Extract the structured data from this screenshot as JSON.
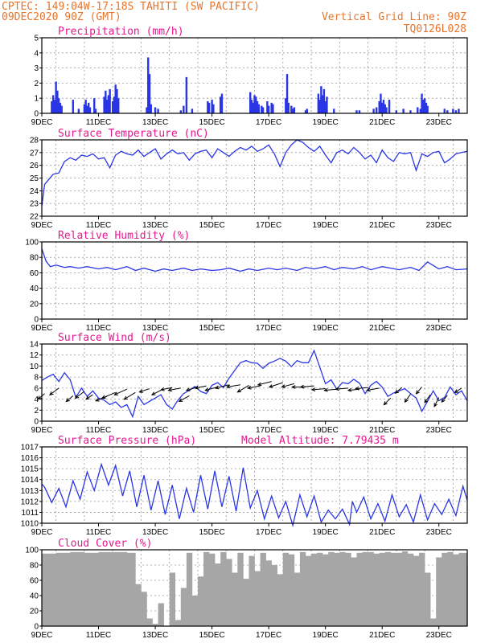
{
  "header": {
    "line1": "CPTEC:   149:04W-17:18S  TAHITI (SW PACIFIC)",
    "line2": "09DEC2020 90Z (GMT)",
    "grid_note": "Vertical Grid Line: 90Z",
    "code": "TQ0126L028"
  },
  "colors": {
    "header": "#e8742a",
    "title": "#e6188f",
    "series": "#2a36e6",
    "cloud": "#a6a6a6",
    "arrow": "#000000"
  },
  "x_axis": {
    "days_start": 0,
    "days_end": 15,
    "tick_labels": [
      "9DEC",
      "11DEC",
      "13DEC",
      "15DEC",
      "17DEC",
      "19DEC",
      "21DEC",
      "23DEC"
    ],
    "tick_days": [
      0,
      2,
      4,
      6,
      8,
      10,
      12,
      14
    ]
  },
  "chart_data": [
    {
      "id": "precip",
      "type": "bar",
      "title": "Precipitation (mm/h)",
      "ylim": [
        0,
        5
      ],
      "yticks": [
        0,
        1,
        2,
        3,
        4,
        5
      ],
      "x": [
        0.35,
        0.4,
        0.45,
        0.5,
        0.55,
        0.6,
        0.65,
        0.7,
        1.1,
        1.3,
        1.5,
        1.55,
        1.6,
        1.65,
        1.7,
        1.85,
        1.9,
        2.2,
        2.25,
        2.3,
        2.35,
        2.4,
        2.5,
        2.55,
        2.6,
        2.65,
        2.7,
        3.7,
        3.75,
        3.8,
        3.85,
        4.0,
        4.1,
        4.9,
        5.0,
        5.1,
        5.3,
        5.85,
        5.9,
        6.0,
        6.05,
        6.3,
        6.35,
        7.35,
        7.4,
        7.45,
        7.5,
        7.55,
        7.6,
        7.65,
        7.75,
        7.8,
        7.95,
        8.0,
        8.1,
        8.15,
        8.6,
        8.65,
        8.7,
        8.8,
        8.85,
        8.9,
        9.3,
        9.35,
        9.75,
        9.8,
        9.85,
        9.9,
        9.95,
        10.0,
        10.05,
        10.3,
        11.1,
        11.2,
        11.7,
        11.8,
        11.9,
        11.95,
        12.0,
        12.05,
        12.1,
        12.15,
        12.25,
        12.5,
        12.75,
        13.0,
        13.25,
        13.35,
        13.4,
        13.45,
        13.5,
        13.55,
        13.6,
        14.2,
        14.3,
        14.5,
        14.6,
        14.7
      ],
      "values": [
        0.8,
        1.2,
        0.9,
        2.1,
        1.5,
        1.0,
        0.7,
        0.5,
        0.9,
        0.3,
        0.6,
        0.9,
        0.5,
        0.7,
        0.4,
        1.0,
        0.3,
        1.1,
        1.5,
        0.9,
        1.2,
        1.6,
        0.8,
        1.1,
        1.9,
        1.6,
        1.0,
        0.4,
        3.7,
        2.6,
        0.6,
        0.4,
        0.3,
        0.2,
        0.5,
        2.4,
        0.3,
        0.8,
        0.7,
        0.9,
        0.6,
        1.1,
        1.3,
        1.4,
        0.9,
        0.7,
        1.2,
        1.1,
        0.8,
        0.6,
        0.5,
        0.4,
        0.8,
        0.5,
        0.7,
        0.6,
        1.0,
        2.6,
        0.7,
        0.5,
        0.3,
        0.4,
        0.2,
        0.3,
        1.3,
        0.9,
        1.8,
        1.2,
        1.6,
        0.8,
        1.1,
        0.3,
        0.2,
        0.2,
        0.3,
        0.4,
        0.8,
        1.3,
        0.7,
        0.9,
        0.6,
        0.4,
        0.9,
        0.2,
        0.3,
        0.2,
        0.4,
        0.3,
        1.3,
        0.9,
        1.0,
        0.7,
        0.5,
        0.3,
        0.2,
        0.3,
        0.2,
        0.3
      ]
    },
    {
      "id": "temp",
      "type": "line",
      "title": "Surface Temperature (nC)",
      "ylim": [
        22,
        28
      ],
      "yticks": [
        22,
        23,
        24,
        25,
        26,
        27,
        28
      ],
      "x": [
        0,
        0.1,
        0.25,
        0.4,
        0.6,
        0.8,
        1.0,
        1.2,
        1.4,
        1.6,
        1.8,
        2.0,
        2.2,
        2.4,
        2.6,
        2.8,
        3.0,
        3.2,
        3.4,
        3.6,
        3.8,
        4.0,
        4.2,
        4.4,
        4.6,
        4.8,
        5.0,
        5.2,
        5.4,
        5.6,
        5.8,
        6.0,
        6.2,
        6.4,
        6.6,
        6.8,
        7.0,
        7.2,
        7.4,
        7.6,
        7.8,
        8.0,
        8.2,
        8.4,
        8.6,
        8.8,
        9.0,
        9.2,
        9.4,
        9.6,
        9.8,
        10.0,
        10.2,
        10.4,
        10.6,
        10.8,
        11.0,
        11.2,
        11.4,
        11.6,
        11.8,
        12.0,
        12.2,
        12.4,
        12.6,
        12.8,
        13.0,
        13.2,
        13.4,
        13.6,
        13.8,
        14.0,
        14.2,
        14.4,
        14.6,
        14.8,
        15.0
      ],
      "values": [
        22.8,
        24.5,
        24.9,
        25.3,
        25.4,
        26.3,
        26.6,
        26.4,
        26.8,
        26.7,
        26.9,
        26.5,
        26.6,
        25.8,
        26.8,
        27.1,
        26.9,
        26.8,
        27.2,
        26.7,
        27.0,
        27.3,
        26.5,
        26.9,
        27.2,
        26.9,
        27.0,
        26.4,
        26.9,
        27.1,
        27.2,
        26.6,
        27.3,
        27.0,
        26.7,
        27.1,
        27.4,
        27.2,
        27.5,
        27.1,
        27.3,
        27.6,
        26.9,
        25.9,
        27.0,
        27.6,
        28.0,
        27.8,
        27.4,
        27.1,
        27.5,
        26.8,
        26.2,
        27.0,
        27.2,
        26.9,
        27.4,
        27.0,
        26.5,
        26.8,
        26.2,
        27.2,
        26.6,
        26.3,
        27.0,
        26.9,
        27.0,
        25.6,
        26.9,
        26.7,
        27.0,
        27.1,
        26.2,
        26.5,
        26.9,
        27.0,
        27.1
      ]
    },
    {
      "id": "rh",
      "type": "line",
      "title": "Relative Humidity (%)",
      "ylim": [
        0,
        100
      ],
      "yticks": [
        0,
        20,
        40,
        60,
        80,
        100
      ],
      "x": [
        0,
        0.15,
        0.3,
        0.5,
        0.8,
        1.0,
        1.3,
        1.6,
        2.0,
        2.3,
        2.6,
        3.0,
        3.3,
        3.6,
        4.0,
        4.3,
        4.6,
        5.0,
        5.3,
        5.6,
        6.0,
        6.3,
        6.6,
        7.0,
        7.3,
        7.6,
        8.0,
        8.3,
        8.6,
        9.0,
        9.3,
        9.6,
        10.0,
        10.3,
        10.6,
        11.0,
        11.3,
        11.6,
        12.0,
        12.3,
        12.6,
        13.0,
        13.3,
        13.6,
        14.0,
        14.3,
        14.6,
        15.0
      ],
      "values": [
        91,
        75,
        68,
        70,
        67,
        68,
        66,
        68,
        65,
        67,
        64,
        68,
        63,
        66,
        62,
        65,
        63,
        66,
        63,
        65,
        63,
        64,
        66,
        62,
        65,
        63,
        66,
        64,
        66,
        63,
        67,
        65,
        68,
        64,
        67,
        65,
        68,
        64,
        68,
        66,
        64,
        67,
        63,
        74,
        65,
        68,
        64,
        65
      ]
    },
    {
      "id": "wind",
      "type": "line",
      "title": "Surface Wind (m/s)",
      "ylim": [
        0,
        14
      ],
      "yticks": [
        0,
        2,
        4,
        6,
        8,
        10,
        12,
        14
      ],
      "x": [
        0,
        0.2,
        0.4,
        0.6,
        0.8,
        1.0,
        1.2,
        1.4,
        1.6,
        1.8,
        2.0,
        2.2,
        2.4,
        2.6,
        2.8,
        3.0,
        3.2,
        3.4,
        3.6,
        3.8,
        4.0,
        4.2,
        4.4,
        4.6,
        4.8,
        5.0,
        5.2,
        5.4,
        5.6,
        5.8,
        6.0,
        6.2,
        6.4,
        6.6,
        6.8,
        7.0,
        7.2,
        7.4,
        7.6,
        7.8,
        8.0,
        8.2,
        8.4,
        8.6,
        8.8,
        9.0,
        9.2,
        9.4,
        9.6,
        9.8,
        10.0,
        10.2,
        10.4,
        10.6,
        10.8,
        11.0,
        11.2,
        11.4,
        11.6,
        11.8,
        12.0,
        12.2,
        12.4,
        12.6,
        12.8,
        13.0,
        13.2,
        13.4,
        13.6,
        13.8,
        14.0,
        14.2,
        14.4,
        14.6,
        14.8,
        15.0
      ],
      "values": [
        7.4,
        8.0,
        8.5,
        7.2,
        8.8,
        7.5,
        4.3,
        6.0,
        4.5,
        5.5,
        4.2,
        3.8,
        3.0,
        3.5,
        2.5,
        3.0,
        0.8,
        4.5,
        3.0,
        3.6,
        4.2,
        4.8,
        3.0,
        2.2,
        3.8,
        5.0,
        5.6,
        6.3,
        5.4,
        5.0,
        6.5,
        7.0,
        6.1,
        7.8,
        9.2,
        10.6,
        11.0,
        10.6,
        10.5,
        9.6,
        10.5,
        10.9,
        11.4,
        10.9,
        9.9,
        11.0,
        10.6,
        10.6,
        12.8,
        9.8,
        6.8,
        7.5,
        5.8,
        7.0,
        6.8,
        7.6,
        6.9,
        5.0,
        6.5,
        7.2,
        6.2,
        4.5,
        5.1,
        5.5,
        5.9,
        5.0,
        4.2,
        1.8,
        3.6,
        5.5,
        3.7,
        4.3,
        6.2,
        4.8,
        5.5,
        3.7
      ]
    },
    {
      "id": "pres",
      "type": "line",
      "title": "Surface Pressure (hPa)",
      "extra_label": "Model Altitude: 7.79435 m",
      "ylim": [
        1010,
        1017
      ],
      "yticks": [
        1010,
        1011,
        1012,
        1013,
        1014,
        1015,
        1016,
        1017
      ],
      "x": [
        0,
        0.1,
        0.35,
        0.6,
        0.85,
        1.1,
        1.35,
        1.6,
        1.85,
        2.1,
        2.35,
        2.6,
        2.85,
        3.1,
        3.35,
        3.6,
        3.85,
        4.1,
        4.35,
        4.6,
        4.85,
        5.1,
        5.35,
        5.6,
        5.85,
        6.1,
        6.35,
        6.6,
        6.85,
        7.1,
        7.35,
        7.6,
        7.85,
        8.1,
        8.35,
        8.6,
        8.85,
        9.1,
        9.35,
        9.6,
        9.85,
        10.1,
        10.35,
        10.6,
        10.85,
        10.95,
        11.1,
        11.35,
        11.6,
        11.85,
        12.1,
        12.35,
        12.6,
        12.85,
        13.1,
        13.35,
        13.6,
        13.85,
        14.1,
        14.35,
        14.6,
        14.85,
        15.0
      ],
      "values": [
        1013.6,
        1013.3,
        1011.9,
        1013.2,
        1011.5,
        1013.9,
        1012.2,
        1014.7,
        1013.0,
        1015.4,
        1013.5,
        1015.3,
        1012.5,
        1014.8,
        1011.5,
        1014.4,
        1011.2,
        1013.9,
        1010.8,
        1013.5,
        1010.4,
        1013.2,
        1011.0,
        1014.4,
        1011.3,
        1014.8,
        1011.5,
        1014.3,
        1011.1,
        1015.1,
        1011.4,
        1013.0,
        1010.4,
        1012.5,
        1010.5,
        1012.0,
        1009.8,
        1012.6,
        1010.6,
        1012.5,
        1010.1,
        1011.2,
        1010.4,
        1011.3,
        1009.9,
        1012.0,
        1011.0,
        1012.4,
        1010.4,
        1011.8,
        1010.2,
        1012.6,
        1010.6,
        1011.7,
        1010.1,
        1012.6,
        1010.3,
        1011.8,
        1010.8,
        1012.2,
        1010.7,
        1013.4,
        1012.1
      ]
    },
    {
      "id": "cloud",
      "type": "area",
      "title": "Cloud Cover (%)",
      "ylim": [
        0,
        100
      ],
      "yticks": [
        0,
        20,
        40,
        60,
        80,
        100
      ],
      "x": [
        0,
        0.5,
        1.0,
        1.5,
        2.0,
        2.5,
        3.0,
        3.3,
        3.5,
        3.7,
        3.9,
        4.1,
        4.3,
        4.5,
        4.7,
        4.9,
        5.1,
        5.3,
        5.5,
        5.7,
        5.9,
        6.1,
        6.3,
        6.5,
        6.7,
        6.9,
        7.1,
        7.3,
        7.5,
        7.7,
        7.9,
        8.1,
        8.3,
        8.5,
        8.7,
        8.9,
        9.1,
        9.3,
        9.5,
        9.7,
        9.9,
        10.1,
        10.3,
        10.5,
        10.7,
        10.9,
        11.1,
        11.3,
        11.5,
        11.7,
        11.9,
        12.1,
        12.3,
        12.5,
        12.7,
        12.9,
        13.1,
        13.3,
        13.5,
        13.7,
        13.9,
        14.1,
        14.3,
        14.5,
        14.7,
        15.0
      ],
      "values": [
        95,
        96,
        97,
        96,
        97,
        97,
        96,
        55,
        45,
        10,
        3,
        30,
        0,
        70,
        8,
        50,
        96,
        40,
        65,
        97,
        95,
        82,
        97,
        88,
        70,
        96,
        62,
        92,
        72,
        96,
        86,
        80,
        68,
        96,
        94,
        70,
        97,
        92,
        95,
        96,
        94,
        97,
        96,
        97,
        96,
        90,
        96,
        97,
        97,
        95,
        96,
        97,
        96,
        96,
        98,
        95,
        92,
        96,
        70,
        10,
        90,
        96,
        97,
        94,
        96,
        80
      ]
    }
  ],
  "wind_arrows": {
    "x": [
      0.1,
      0.6,
      1.1,
      1.5,
      1.8,
      2.3,
      2.6,
      3.0,
      3.3,
      3.8,
      4.2,
      4.6,
      4.9,
      5.2,
      5.5,
      5.8,
      6.2,
      6.6,
      7.0,
      7.3,
      7.7,
      8.1,
      8.5,
      8.9,
      9.3,
      9.6,
      10.0,
      10.4,
      10.8,
      11.2,
      11.5,
      11.9,
      12.3,
      12.7,
      13.0,
      13.4,
      13.7,
      14.0,
      14.3,
      14.8
    ],
    "y": [
      5.0,
      6.0,
      4.6,
      5.4,
      4.8,
      4.5,
      5.2,
      5.8,
      5.2,
      5.9,
      5.6,
      6.1,
      6.0,
      4.6,
      6.2,
      6.4,
      6.2,
      6.6,
      6.6,
      6.5,
      6.4,
      7.2,
      7.0,
      6.8,
      6.2,
      6.4,
      5.9,
      5.8,
      6.0,
      5.8,
      6.1,
      6.0,
      4.2,
      6.1,
      4.9,
      6.2,
      4.8,
      4.3,
      4.7,
      6.0
    ],
    "u": [
      0.6,
      0.8,
      0.6,
      0.8,
      0.6,
      1.0,
      1.2,
      1.1,
      1.0,
      0.9,
      0.8,
      1.0,
      1.1,
      0.9,
      1.0,
      1.0,
      1.1,
      1.2,
      1.2,
      1.0,
      1.1,
      1.2,
      1.2,
      1.1,
      1.2,
      1.2,
      1.2,
      1.1,
      1.1,
      1.0,
      1.1,
      1.1,
      0.6,
      0.6,
      0.5,
      0.5,
      0.5,
      0.4,
      0.5,
      0.6
    ],
    "v": [
      0.5,
      0.6,
      0.5,
      0.6,
      0.4,
      0.4,
      0.5,
      0.5,
      0.6,
      0.3,
      0.4,
      0.2,
      0.2,
      0.5,
      0.3,
      0.2,
      0.3,
      0.3,
      0.2,
      0.6,
      0.2,
      0.3,
      0.4,
      0.3,
      0.0,
      0.1,
      0.1,
      0.1,
      0.1,
      0.1,
      0.1,
      0.2,
      0.6,
      0.5,
      0.7,
      0.6,
      0.7,
      0.8,
      0.6,
      0.4
    ]
  }
}
